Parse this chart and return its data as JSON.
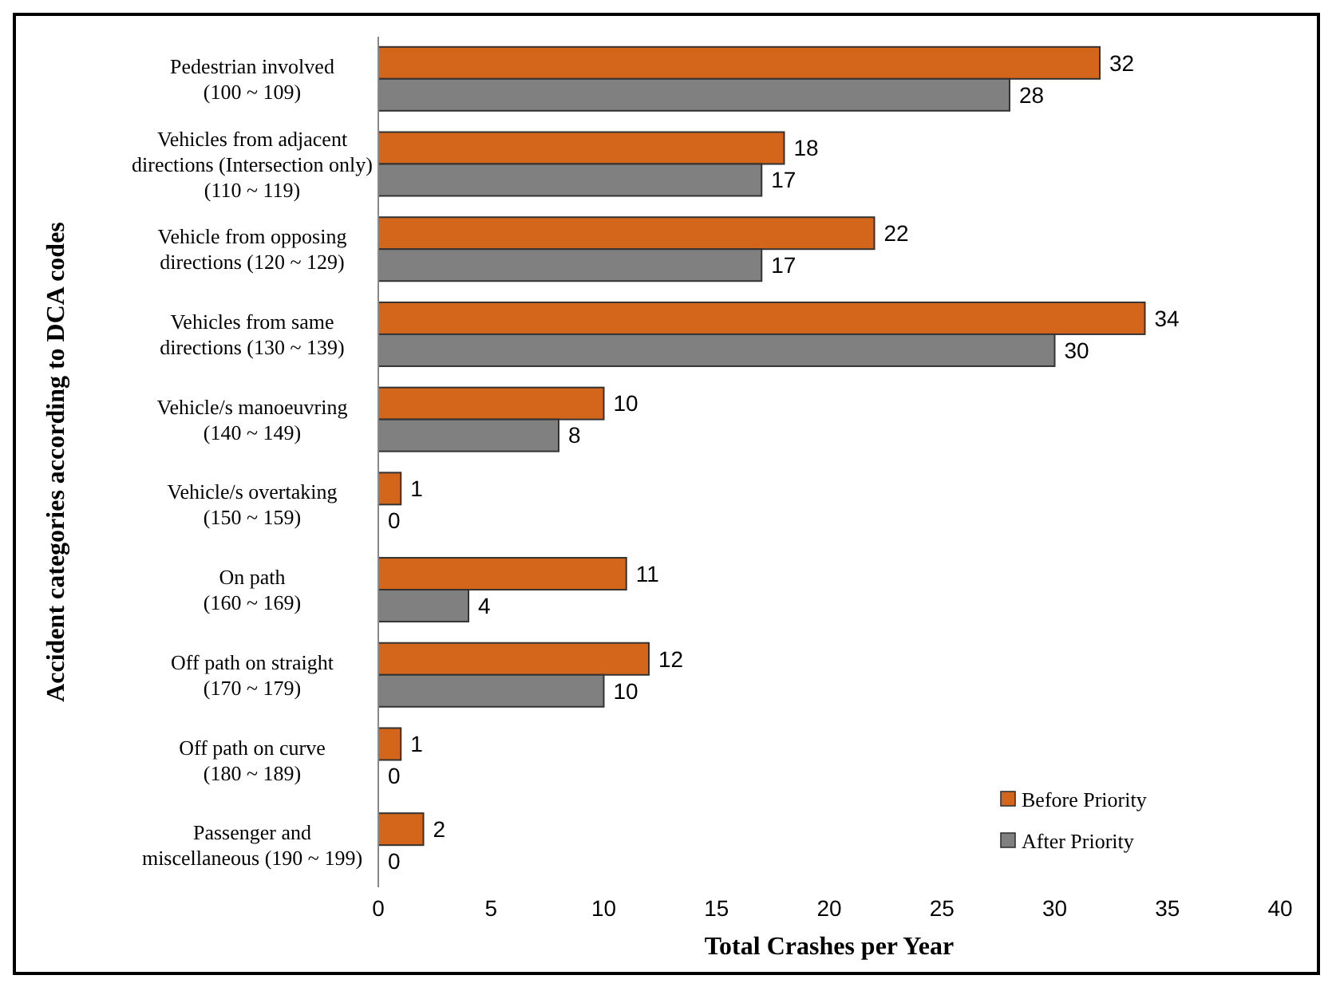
{
  "chart_data": {
    "type": "bar",
    "orientation": "horizontal",
    "xlabel": "Total Crashes per Year",
    "ylabel": "Accident categories according to DCA codes",
    "categories": [
      "Pedestrian involved\n(100 ~ 109)",
      "Vehicles from adjacent\ndirections (Intersection only)\n(110 ~ 119)",
      "Vehicle from opposing\ndirections (120 ~ 129)",
      "Vehicles from same\ndirections (130 ~ 139)",
      "Vehicle/s manoeuvring\n(140 ~ 149)",
      "Vehicle/s overtaking\n(150 ~ 159)",
      "On path\n(160 ~ 169)",
      "Off path on straight\n(170 ~ 179)",
      "Off path on curve\n(180 ~ 189)",
      "Passenger and\nmiscellaneous (190 ~ 199)"
    ],
    "series": [
      {
        "name": "Before Priority",
        "color": "#d4661c",
        "values": [
          32,
          18,
          22,
          34,
          10,
          1,
          11,
          12,
          1,
          2
        ]
      },
      {
        "name": "After Priority",
        "color": "#808080",
        "values": [
          28,
          17,
          17,
          30,
          8,
          0,
          4,
          10,
          0,
          0
        ]
      }
    ],
    "xlim": [
      0,
      40
    ],
    "xticks": [
      0,
      5,
      10,
      15,
      20,
      25,
      30,
      35,
      40
    ],
    "data_labels": true,
    "legend": "bottom right"
  }
}
